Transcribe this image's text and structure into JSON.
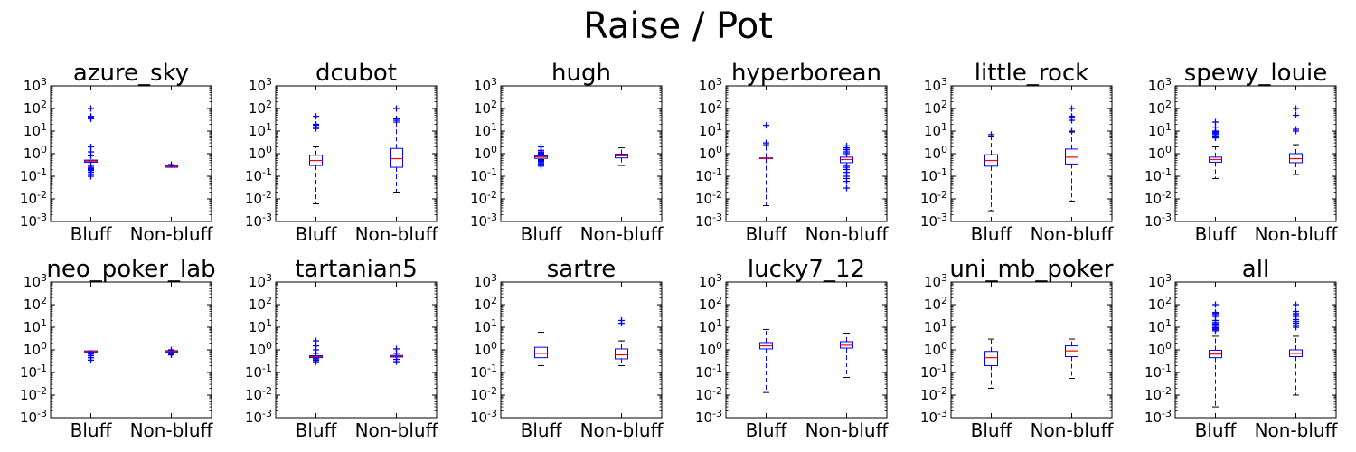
{
  "figure": {
    "title": "Raise / Pot"
  },
  "colors": {
    "box": "#0000ff",
    "median": "#ff0000",
    "flier": "#0000ff",
    "axis": "#000000"
  },
  "chart_data": [
    {
      "type": "box",
      "title": "azure_sky",
      "categories": [
        "Bluff",
        "Non-bluff"
      ],
      "yscale": "log",
      "ylim": [
        0.001,
        1000
      ],
      "yticks": [
        "10^-3",
        "10^-2",
        "10^-1",
        "10^0",
        "10^1",
        "10^2",
        "10^3"
      ],
      "boxes": [
        {
          "q1": 0.42,
          "median": 0.47,
          "q3": 0.52,
          "whisker_low": 0.42,
          "whisker_high": 0.52,
          "fliers": [
            0.1,
            0.12,
            0.15,
            0.18,
            0.2,
            0.22,
            0.25,
            0.3,
            0.8,
            1.2,
            2,
            35,
            40,
            45,
            100
          ]
        },
        {
          "q1": 0.25,
          "median": 0.27,
          "q3": 0.29,
          "whisker_low": 0.25,
          "whisker_high": 0.29,
          "fliers": [
            0.33
          ]
        }
      ]
    },
    {
      "type": "box",
      "title": "dcubot",
      "categories": [
        "Bluff",
        "Non-bluff"
      ],
      "yscale": "log",
      "ylim": [
        0.001,
        1000
      ],
      "yticks": [
        "10^-3",
        "10^-2",
        "10^-1",
        "10^0",
        "10^1",
        "10^2",
        "10^3"
      ],
      "boxes": [
        {
          "q1": 0.3,
          "median": 0.5,
          "q3": 0.85,
          "whisker_low": 0.006,
          "whisker_high": 2,
          "fliers": [
            13,
            15,
            18,
            20,
            45
          ]
        },
        {
          "q1": 0.25,
          "median": 0.6,
          "q3": 1.7,
          "whisker_low": 0.02,
          "whisker_high": 25,
          "fliers": [
            30,
            35,
            100
          ]
        }
      ]
    },
    {
      "type": "box",
      "title": "hugh",
      "categories": [
        "Bluff",
        "Non-bluff"
      ],
      "yscale": "log",
      "ylim": [
        0.001,
        1000
      ],
      "yticks": [
        "10^-3",
        "10^-2",
        "10^-1",
        "10^0",
        "10^1",
        "10^2",
        "10^3"
      ],
      "boxes": [
        {
          "q1": 0.62,
          "median": 0.72,
          "q3": 0.8,
          "whisker_low": 0.55,
          "whisker_high": 0.95,
          "fliers": [
            0.28,
            0.35,
            0.4,
            0.45,
            0.5,
            1.0,
            1.1,
            1.2,
            1.4,
            2.0
          ]
        },
        {
          "q1": 0.65,
          "median": 0.8,
          "q3": 0.95,
          "whisker_low": 0.3,
          "whisker_high": 1.8,
          "fliers": []
        }
      ]
    },
    {
      "type": "box",
      "title": "hyperborean",
      "categories": [
        "Bluff",
        "Non-bluff"
      ],
      "yscale": "log",
      "ylim": [
        0.001,
        1000
      ],
      "yticks": [
        "10^-3",
        "10^-2",
        "10^-1",
        "10^0",
        "10^1",
        "10^2",
        "10^3"
      ],
      "boxes": [
        {
          "q1": 0.6,
          "median": 0.62,
          "q3": 0.65,
          "whisker_low": 0.005,
          "whisker_high": 2.5,
          "fliers": [
            3,
            18
          ]
        },
        {
          "q1": 0.4,
          "median": 0.55,
          "q3": 0.7,
          "whisker_low": 0.08,
          "whisker_high": 1.5,
          "fliers": [
            0.03,
            0.06,
            0.1,
            0.15,
            0.2,
            0.25,
            0.3,
            1.0,
            1.2,
            1.5,
            1.8,
            2.2
          ]
        }
      ]
    },
    {
      "type": "box",
      "title": "little_rock",
      "categories": [
        "Bluff",
        "Non-bluff"
      ],
      "yscale": "log",
      "ylim": [
        0.001,
        1000
      ],
      "yticks": [
        "10^-3",
        "10^-2",
        "10^-1",
        "10^0",
        "10^1",
        "10^2",
        "10^3"
      ],
      "boxes": [
        {
          "q1": 0.28,
          "median": 0.5,
          "q3": 0.9,
          "whisker_low": 0.003,
          "whisker_high": 6,
          "fliers": [
            7
          ]
        },
        {
          "q1": 0.35,
          "median": 0.7,
          "q3": 1.6,
          "whisker_low": 0.008,
          "whisker_high": 9,
          "fliers": [
            10,
            30,
            40,
            45,
            100
          ]
        }
      ]
    },
    {
      "type": "box",
      "title": "spewy_louie",
      "categories": [
        "Bluff",
        "Non-bluff"
      ],
      "yscale": "log",
      "ylim": [
        0.001,
        1000
      ],
      "yticks": [
        "10^-3",
        "10^-2",
        "10^-1",
        "10^0",
        "10^1",
        "10^2",
        "10^3"
      ],
      "boxes": [
        {
          "q1": 0.42,
          "median": 0.55,
          "q3": 0.7,
          "whisker_low": 0.08,
          "whisker_high": 2,
          "fliers": [
            5,
            6,
            7,
            8,
            9,
            10,
            15,
            25
          ]
        },
        {
          "q1": 0.4,
          "median": 0.6,
          "q3": 1.0,
          "whisker_low": 0.12,
          "whisker_high": 2.5,
          "fliers": [
            10,
            12,
            50,
            100
          ]
        }
      ]
    },
    {
      "type": "box",
      "title": "neo_poker_lab",
      "categories": [
        "Bluff",
        "Non-bluff"
      ],
      "yscale": "log",
      "ylim": [
        0.001,
        1000
      ],
      "yticks": [
        "10^-3",
        "10^-2",
        "10^-1",
        "10^0",
        "10^1",
        "10^2",
        "10^3"
      ],
      "boxes": [
        {
          "q1": 0.8,
          "median": 0.85,
          "q3": 0.9,
          "whisker_low": 0.8,
          "whisker_high": 0.9,
          "fliers": [
            0.35,
            0.45,
            0.55,
            0.65
          ]
        },
        {
          "q1": 0.78,
          "median": 0.85,
          "q3": 0.92,
          "whisker_low": 0.78,
          "whisker_high": 0.92,
          "fliers": [
            0.6,
            0.65,
            0.7,
            1.0
          ]
        }
      ]
    },
    {
      "type": "box",
      "title": "tartanian5",
      "categories": [
        "Bluff",
        "Non-bluff"
      ],
      "yscale": "log",
      "ylim": [
        0.001,
        1000
      ],
      "yticks": [
        "10^-3",
        "10^-2",
        "10^-1",
        "10^0",
        "10^1",
        "10^2",
        "10^3"
      ],
      "boxes": [
        {
          "q1": 0.45,
          "median": 0.5,
          "q3": 0.55,
          "whisker_low": 0.45,
          "whisker_high": 0.55,
          "fliers": [
            0.3,
            0.35,
            0.4,
            0.7,
            1.0,
            1.5,
            2.5
          ]
        },
        {
          "q1": 0.48,
          "median": 0.52,
          "q3": 0.56,
          "whisker_low": 0.48,
          "whisker_high": 0.56,
          "fliers": [
            0.3,
            0.38,
            0.7,
            1.1
          ]
        }
      ]
    },
    {
      "type": "box",
      "title": "sartre",
      "categories": [
        "Bluff",
        "Non-bluff"
      ],
      "yscale": "log",
      "ylim": [
        0.001,
        1000
      ],
      "yticks": [
        "10^-3",
        "10^-2",
        "10^-1",
        "10^0",
        "10^1",
        "10^2",
        "10^3"
      ],
      "boxes": [
        {
          "q1": 0.45,
          "median": 0.7,
          "q3": 1.3,
          "whisker_low": 0.2,
          "whisker_high": 6,
          "fliers": []
        },
        {
          "q1": 0.4,
          "median": 0.6,
          "q3": 1.1,
          "whisker_low": 0.2,
          "whisker_high": 2.5,
          "fliers": [
            15,
            20
          ]
        }
      ]
    },
    {
      "type": "box",
      "title": "lucky7_12",
      "categories": [
        "Bluff",
        "Non-bluff"
      ],
      "yscale": "log",
      "ylim": [
        0.001,
        1000
      ],
      "yticks": [
        "10^-3",
        "10^-2",
        "10^-1",
        "10^0",
        "10^1",
        "10^2",
        "10^3"
      ],
      "boxes": [
        {
          "q1": 1.1,
          "median": 1.5,
          "q3": 2.1,
          "whisker_low": 0.013,
          "whisker_high": 8,
          "fliers": []
        },
        {
          "q1": 1.2,
          "median": 1.6,
          "q3": 2.3,
          "whisker_low": 0.06,
          "whisker_high": 5.5,
          "fliers": []
        }
      ]
    },
    {
      "type": "box",
      "title": "uni_mb_poker",
      "categories": [
        "Bluff",
        "Non-bluff"
      ],
      "yscale": "log",
      "ylim": [
        0.001,
        1000
      ],
      "yticks": [
        "10^-3",
        "10^-2",
        "10^-1",
        "10^0",
        "10^1",
        "10^2",
        "10^3"
      ],
      "boxes": [
        {
          "q1": 0.2,
          "median": 0.45,
          "q3": 0.85,
          "whisker_low": 0.02,
          "whisker_high": 3,
          "fliers": []
        },
        {
          "q1": 0.5,
          "median": 0.9,
          "q3": 1.5,
          "whisker_low": 0.055,
          "whisker_high": 3,
          "fliers": []
        }
      ]
    },
    {
      "type": "box",
      "title": "all",
      "categories": [
        "Bluff",
        "Non-bluff"
      ],
      "yscale": "log",
      "ylim": [
        0.001,
        1000
      ],
      "yticks": [
        "10^-3",
        "10^-2",
        "10^-1",
        "10^0",
        "10^1",
        "10^2",
        "10^3"
      ],
      "boxes": [
        {
          "q1": 0.45,
          "median": 0.65,
          "q3": 0.95,
          "whisker_low": 0.003,
          "whisker_high": 4,
          "fliers": [
            7,
            8,
            9,
            10,
            12,
            14,
            16,
            20,
            30,
            35,
            40,
            45,
            100
          ]
        },
        {
          "q1": 0.5,
          "median": 0.7,
          "q3": 1.0,
          "whisker_low": 0.01,
          "whisker_high": 4,
          "fliers": [
            10,
            12,
            15,
            18,
            22,
            30,
            35,
            40,
            50,
            100
          ]
        }
      ]
    }
  ]
}
